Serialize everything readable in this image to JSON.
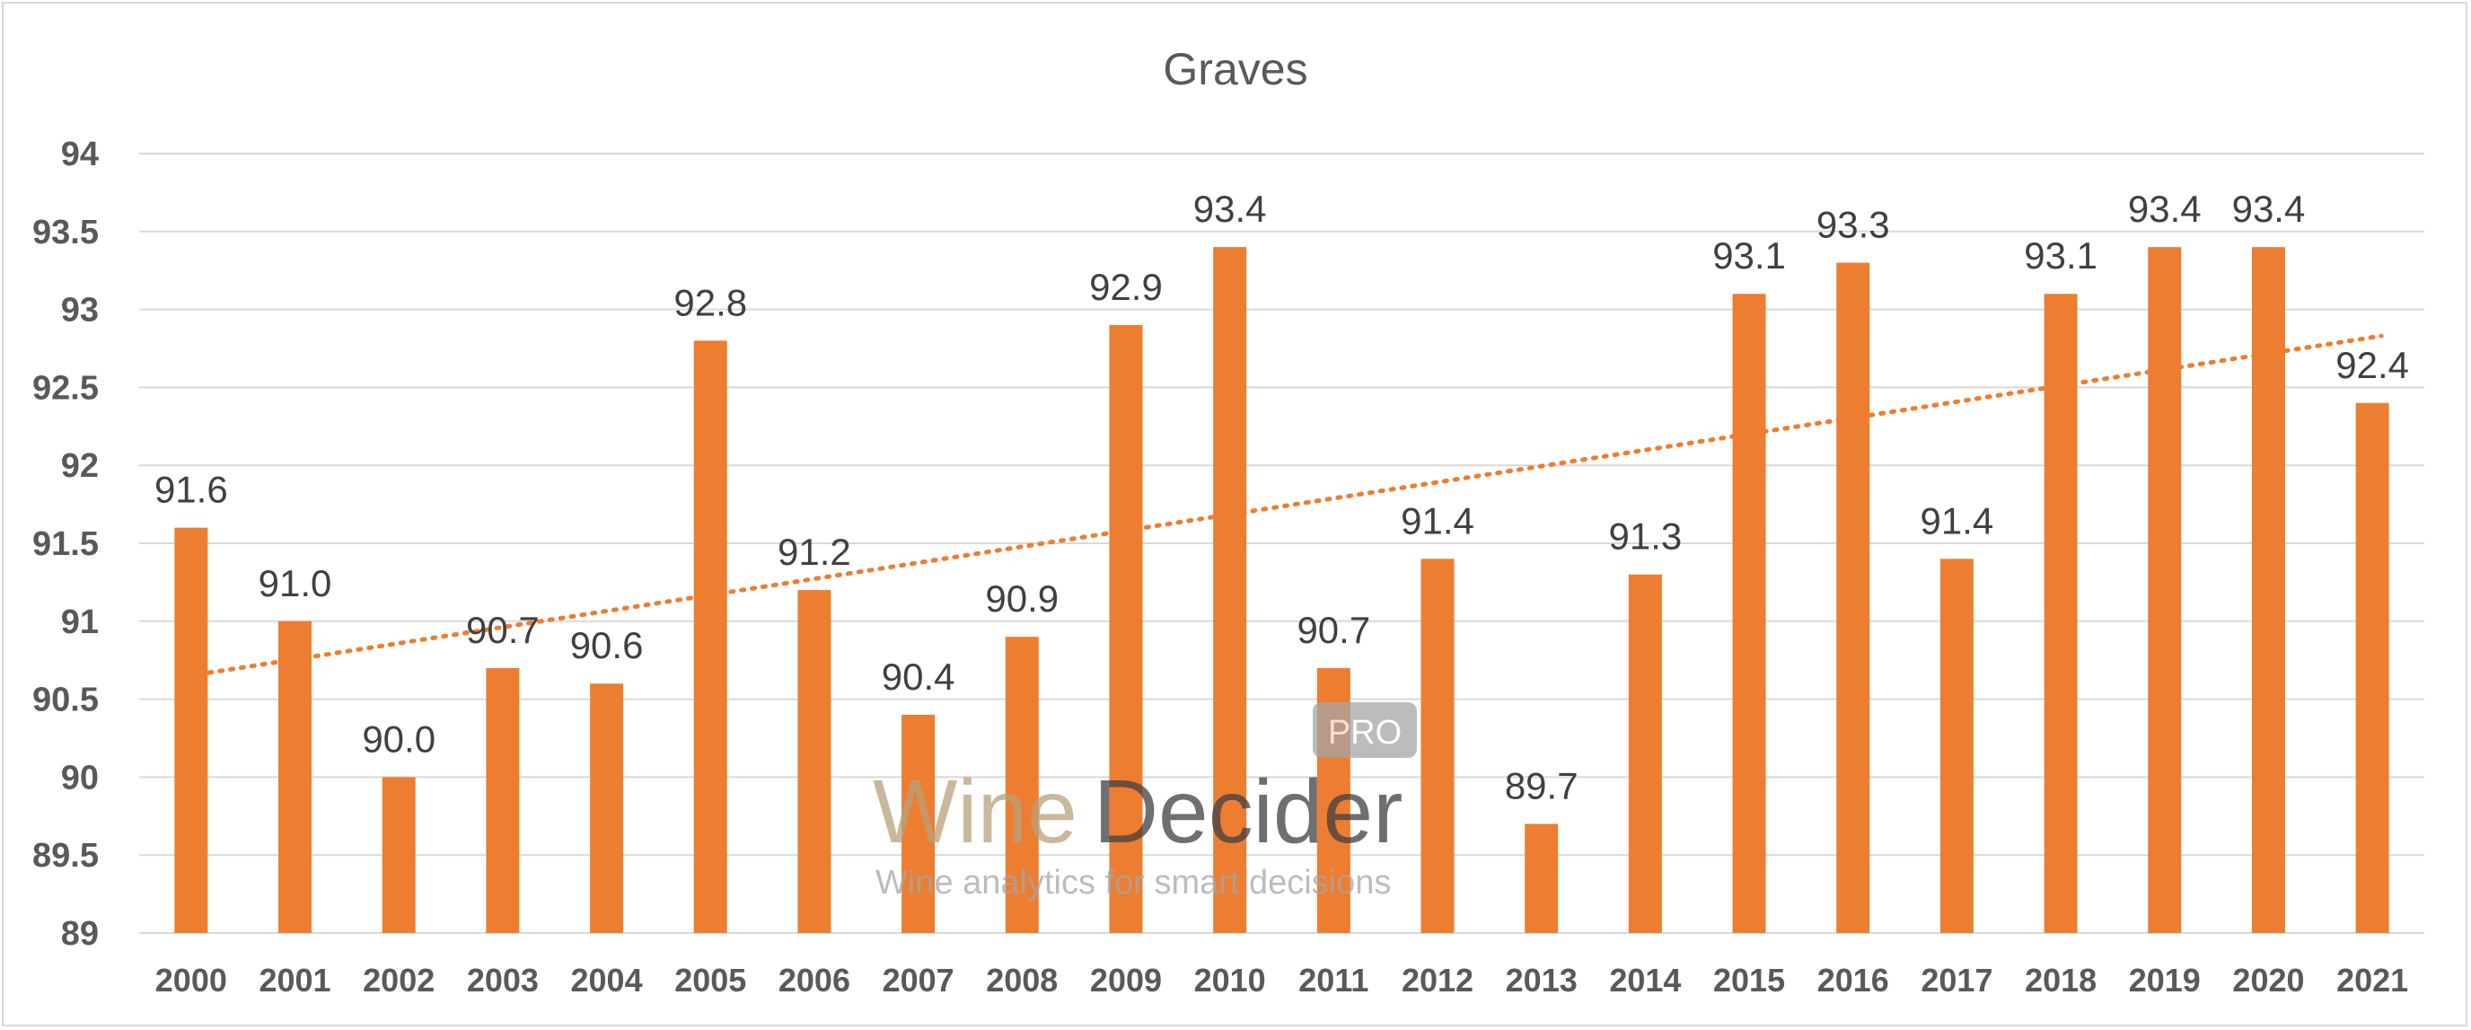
{
  "chart_data": {
    "type": "bar",
    "title": "Graves",
    "xlabel": "",
    "ylabel": "",
    "ylim": [
      89,
      94
    ],
    "yticks": [
      "89",
      "89.5",
      "90",
      "90.5",
      "91",
      "91.5",
      "92",
      "92.5",
      "93",
      "93.5",
      "94"
    ],
    "grid": true,
    "legend": "none",
    "categories": [
      "2000",
      "2001",
      "2002",
      "2003",
      "2004",
      "2005",
      "2006",
      "2007",
      "2008",
      "2009",
      "2010",
      "2011",
      "2012",
      "2013",
      "2014",
      "2015",
      "2016",
      "2017",
      "2018",
      "2019",
      "2020",
      "2021"
    ],
    "series": [
      {
        "values": [
          91.6,
          91.0,
          90.0,
          90.7,
          90.6,
          92.8,
          91.2,
          90.4,
          90.9,
          92.9,
          93.4,
          90.7,
          91.4,
          89.7,
          91.3,
          93.1,
          93.3,
          91.4,
          93.1,
          93.4,
          93.4,
          92.4
        ],
        "data_labels": [
          "91.6",
          "91.0",
          "90.0",
          "90.7",
          "90.6",
          "92.8",
          "91.2",
          "90.4",
          "90.9",
          "92.9",
          "93.4",
          "90.7",
          "91.4",
          "89.7",
          "91.3",
          "93.1",
          "93.3",
          "91.4",
          "93.1",
          "93.4",
          "93.4",
          "92.4"
        ],
        "color": "#ed7d31"
      }
    ],
    "trendline": {
      "type": "linear",
      "style": "dotted",
      "color": "#ed7d31",
      "start": 90.67,
      "end": 92.83
    }
  },
  "watermark": {
    "wine": "Wine",
    "decider": "Decider",
    "pro": "PRO",
    "tagline": "Wine analytics for smart decisions",
    "colors": {
      "wine": "#b8a17a",
      "decider": "#404040",
      "pro_bg": "#a6a6a6"
    }
  }
}
